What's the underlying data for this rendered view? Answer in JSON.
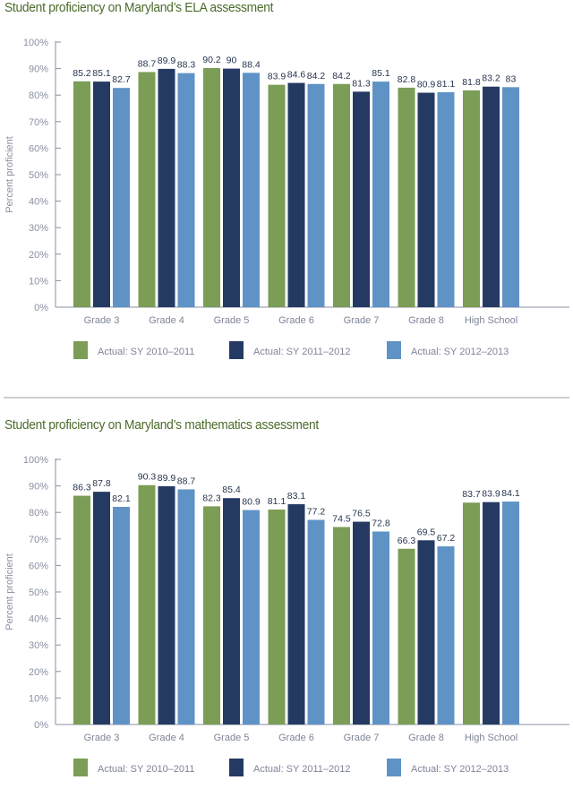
{
  "colors": {
    "series": [
      "#7b9d55",
      "#253a63",
      "#5f93c6"
    ],
    "axis": "#8a8fa3",
    "title": "#4a6b2a"
  },
  "chart_data": [
    {
      "type": "bar",
      "title": "Student proficiency on Maryland’s ELA assessment",
      "xlabel": "",
      "ylabel": "Percent proficient",
      "ylim": [
        0,
        100
      ],
      "yticks": [
        "0%",
        "10%",
        "20%",
        "30%",
        "40%",
        "50%",
        "60%",
        "70%",
        "80%",
        "90%",
        "100%"
      ],
      "grid": false,
      "legend_position": "bottom",
      "categories": [
        "Grade 3",
        "Grade 4",
        "Grade 5",
        "Grade 6",
        "Grade 7",
        "Grade 8",
        "High School"
      ],
      "series": [
        {
          "name": "Actual: SY 2010–2011",
          "values": [
            85.2,
            88.7,
            90.2,
            83.9,
            84.2,
            82.8,
            81.8
          ]
        },
        {
          "name": "Actual: SY 2011–2012",
          "values": [
            85.1,
            89.9,
            90.0,
            84.6,
            81.3,
            80.9,
            83.2
          ]
        },
        {
          "name": "Actual: SY 2012–2013",
          "values": [
            82.7,
            88.3,
            88.4,
            84.2,
            85.1,
            81.1,
            83.0
          ]
        }
      ]
    },
    {
      "type": "bar",
      "title": "Student proficiency on Maryland’s mathematics assessment",
      "xlabel": "",
      "ylabel": "Percent proficient",
      "ylim": [
        0,
        100
      ],
      "yticks": [
        "0%",
        "10%",
        "20%",
        "30%",
        "40%",
        "50%",
        "60%",
        "70%",
        "80%",
        "90%",
        "100%"
      ],
      "grid": false,
      "legend_position": "bottom",
      "categories": [
        "Grade 3",
        "Grade 4",
        "Grade 5",
        "Grade 6",
        "Grade 7",
        "Grade 8",
        "High School"
      ],
      "series": [
        {
          "name": "Actual: SY 2010–2011",
          "values": [
            86.3,
            90.3,
            82.3,
            81.1,
            74.5,
            66.3,
            83.7
          ]
        },
        {
          "name": "Actual: SY 2011–2012",
          "values": [
            87.8,
            89.9,
            85.4,
            83.1,
            76.5,
            69.5,
            83.9
          ]
        },
        {
          "name": "Actual: SY 2012–2013",
          "values": [
            82.1,
            88.7,
            80.9,
            77.2,
            72.8,
            67.2,
            84.1
          ]
        }
      ]
    }
  ]
}
